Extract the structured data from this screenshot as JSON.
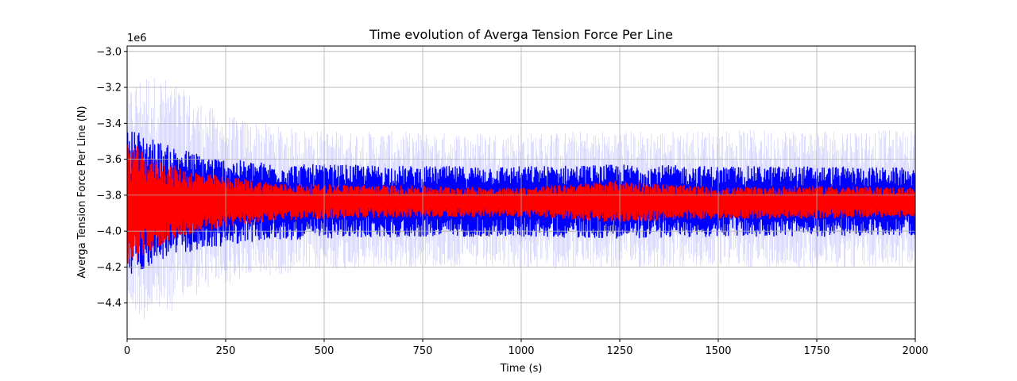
{
  "chart_data": {
    "type": "line",
    "title": "Time evolution of Averga Tension Force Per Line",
    "xlabel": "Time (s)",
    "ylabel": "Averga Tension Force Per Line (N)",
    "y_offset_label": "1e6",
    "xlim": [
      0,
      2000
    ],
    "ylim": [
      -4.6,
      -2.97
    ],
    "x_ticks": [
      0,
      250,
      500,
      750,
      1000,
      1250,
      1500,
      1750,
      2000
    ],
    "x_tick_labels": [
      "0",
      "250",
      "500",
      "750",
      "1000",
      "1250",
      "1500",
      "1750",
      "2000"
    ],
    "y_ticks": [
      -4.4,
      -4.2,
      -4.0,
      -3.8,
      -3.6,
      -3.4,
      -3.2,
      -3.0
    ],
    "y_tick_labels": [
      "−4.4",
      "−4.2",
      "−4.0",
      "−3.8",
      "−3.6",
      "−3.4",
      "−3.2",
      "−3.0"
    ],
    "grid": true,
    "legend": "none",
    "series": [
      {
        "role": "envelope",
        "color": "#b3b3ff",
        "x": [
          0,
          25,
          50,
          100,
          150,
          200,
          250,
          300,
          400,
          500,
          750,
          1000,
          1250,
          1500,
          1750,
          2000
        ],
        "upper": [
          -3.22,
          -3.15,
          -3.12,
          -3.15,
          -3.22,
          -3.3,
          -3.35,
          -3.38,
          -3.42,
          -3.44,
          -3.45,
          -3.45,
          -3.44,
          -3.44,
          -3.43,
          -3.44
        ],
        "lower": [
          -4.42,
          -4.48,
          -4.5,
          -4.46,
          -4.4,
          -4.33,
          -4.3,
          -4.27,
          -4.24,
          -4.22,
          -4.2,
          -4.21,
          -4.21,
          -4.2,
          -4.21,
          -4.2
        ]
      },
      {
        "role": "band",
        "color": "#0000ff",
        "x": [
          0,
          10,
          50,
          100,
          150,
          200,
          250,
          300,
          400,
          500,
          750,
          1000,
          1250,
          1500,
          1750,
          2000
        ],
        "upper": [
          -3.45,
          -3.42,
          -3.47,
          -3.52,
          -3.55,
          -3.58,
          -3.6,
          -3.61,
          -3.63,
          -3.63,
          -3.64,
          -3.64,
          -3.63,
          -3.64,
          -3.64,
          -3.65
        ],
        "lower": [
          -4.25,
          -4.25,
          -4.2,
          -4.15,
          -4.12,
          -4.1,
          -4.08,
          -4.06,
          -4.05,
          -4.04,
          -4.03,
          -4.03,
          -4.04,
          -4.03,
          -4.03,
          -4.02
        ]
      },
      {
        "role": "signal",
        "color": "#ff0000",
        "x": [
          0,
          10,
          50,
          100,
          150,
          200,
          250,
          300,
          400,
          500,
          750,
          1000,
          1250,
          1500,
          1750,
          2000
        ],
        "upper": [
          -3.52,
          -3.5,
          -3.58,
          -3.62,
          -3.66,
          -3.68,
          -3.7,
          -3.71,
          -3.74,
          -3.74,
          -3.75,
          -3.76,
          -3.72,
          -3.76,
          -3.75,
          -3.76
        ],
        "lower": [
          -4.2,
          -4.22,
          -4.12,
          -4.07,
          -4.02,
          -4.0,
          -3.98,
          -3.96,
          -3.94,
          -3.93,
          -3.92,
          -3.92,
          -3.95,
          -3.93,
          -3.93,
          -3.92
        ]
      }
    ]
  }
}
